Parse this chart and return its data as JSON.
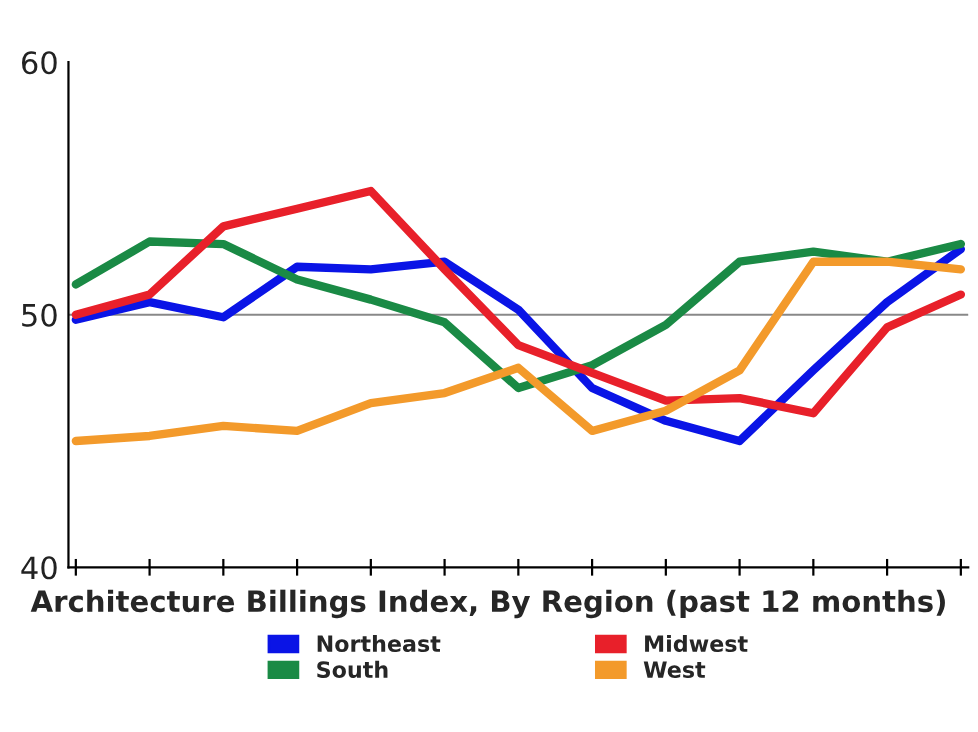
{
  "chart_data": {
    "type": "line",
    "title": "Architecture Billings Index, By Region (past 12 months)",
    "categories": [
      null,
      null,
      null,
      null,
      null,
      null,
      null,
      null,
      null,
      null,
      null,
      null,
      null
    ],
    "series": [
      {
        "name": "Northeast",
        "color": "#0a14e6",
        "values": [
          49.8,
          50.5,
          49.9,
          51.9,
          51.8,
          52.1,
          50.2,
          47.1,
          45.8,
          45.0,
          47.8,
          50.5,
          52.6
        ]
      },
      {
        "name": "South",
        "color": "#1a8a45",
        "values": [
          51.2,
          52.9,
          52.8,
          51.4,
          50.6,
          49.7,
          47.1,
          48.0,
          49.6,
          52.1,
          52.5,
          52.1,
          52.8
        ]
      },
      {
        "name": "Midwest",
        "color": "#e8202a",
        "values": [
          50.0,
          50.8,
          53.5,
          54.2,
          54.9,
          51.8,
          48.8,
          47.7,
          46.6,
          46.7,
          46.1,
          49.5,
          50.8
        ]
      },
      {
        "name": "West",
        "color": "#f39a2b",
        "values": [
          45.0,
          45.2,
          45.6,
          45.4,
          46.5,
          46.9,
          47.9,
          45.4,
          46.2,
          47.8,
          52.1,
          52.1,
          51.8
        ]
      }
    ],
    "ylim": [
      40,
      60
    ],
    "yticks": [
      40,
      50,
      60
    ],
    "grid": false,
    "legend": "bottom",
    "ref_lines": [
      {
        "axis": "y",
        "value": 50,
        "color": "#888888"
      }
    ]
  }
}
